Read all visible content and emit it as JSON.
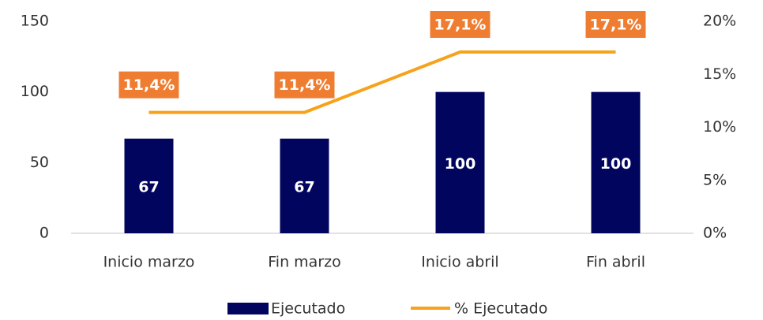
{
  "chart_data": {
    "type": "bar",
    "categories": [
      "Inicio marzo",
      "Fin marzo",
      "Inicio abril",
      "Fin abril"
    ],
    "series": [
      {
        "name": "Ejecutado",
        "type": "bar",
        "color": "#02055e",
        "values": [
          67,
          67,
          100,
          100
        ]
      },
      {
        "name": "% Ejecutado",
        "type": "line",
        "axis": "y2",
        "color": "#f7a21b",
        "label_color": "#ef7d31",
        "values": [
          11.4,
          11.4,
          17.1,
          17.1
        ],
        "value_labels": [
          "11,4%",
          "11,4%",
          "17,1%",
          "17,1%"
        ]
      }
    ],
    "ylim": [
      0,
      150
    ],
    "yticks": [
      0,
      50,
      100,
      150
    ],
    "y2lim": [
      0,
      20
    ],
    "y2ticks": [
      {
        "value": 0,
        "label": "0%"
      },
      {
        "value": 5,
        "label": "5%"
      },
      {
        "value": 10,
        "label": "10%"
      },
      {
        "value": 15,
        "label": "15%"
      },
      {
        "value": 20,
        "label": "20%"
      }
    ],
    "grid": false,
    "legend": "bottom"
  }
}
